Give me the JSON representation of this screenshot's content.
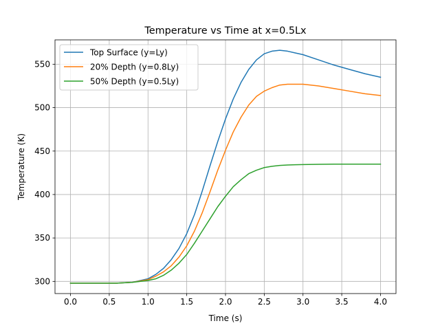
{
  "chart_data": {
    "type": "line",
    "title": "Temperature vs Time at x=0.5Lx",
    "xlabel": "Time (s)",
    "ylabel": "Temperature (K)",
    "xlim": [
      -0.2,
      4.2
    ],
    "ylim": [
      286,
      578
    ],
    "xticks": [
      0.0,
      0.5,
      1.0,
      1.5,
      2.0,
      2.5,
      3.0,
      3.5,
      4.0
    ],
    "xtick_labels": [
      "0.0",
      "0.5",
      "1.0",
      "1.5",
      "2.0",
      "2.5",
      "3.0",
      "3.5",
      "4.0"
    ],
    "yticks": [
      300,
      350,
      400,
      450,
      500,
      550
    ],
    "ytick_labels": [
      "300",
      "350",
      "400",
      "450",
      "500",
      "550"
    ],
    "grid": true,
    "legend_position": "upper-left",
    "x": [
      0.0,
      0.2,
      0.4,
      0.6,
      0.8,
      1.0,
      1.1,
      1.2,
      1.3,
      1.4,
      1.5,
      1.6,
      1.7,
      1.8,
      1.9,
      2.0,
      2.1,
      2.2,
      2.3,
      2.4,
      2.5,
      2.6,
      2.7,
      2.8,
      2.9,
      3.0,
      3.2,
      3.4,
      3.6,
      3.8,
      4.0
    ],
    "series": [
      {
        "name": "Top Surface (y=Ly)",
        "color": "#1f77b4",
        "values": [
          298,
          298,
          298,
          298,
          299,
          303,
          308,
          315,
          325,
          338,
          355,
          377,
          404,
          433,
          461,
          487,
          510,
          529,
          544,
          555,
          562,
          565,
          566,
          565,
          563,
          561,
          555,
          549,
          544,
          539,
          535
        ]
      },
      {
        "name": "20% Depth (y=0.8Ly)",
        "color": "#ff7f0e",
        "values": [
          298,
          298,
          298,
          298,
          299,
          302,
          306,
          311,
          318,
          328,
          341,
          358,
          379,
          403,
          428,
          451,
          472,
          489,
          503,
          513,
          519,
          523,
          526,
          527,
          527,
          527,
          525,
          522,
          519,
          516,
          514
        ]
      },
      {
        "name": "50% Depth (y=0.5Ly)",
        "color": "#2ca02c",
        "values": [
          298,
          298,
          298,
          298,
          299,
          301,
          303,
          307,
          313,
          321,
          331,
          344,
          358,
          372,
          386,
          398,
          409,
          417,
          424,
          428,
          431,
          432.5,
          433.5,
          434,
          434.3,
          434.5,
          434.8,
          435,
          435,
          435,
          435
        ]
      }
    ]
  }
}
